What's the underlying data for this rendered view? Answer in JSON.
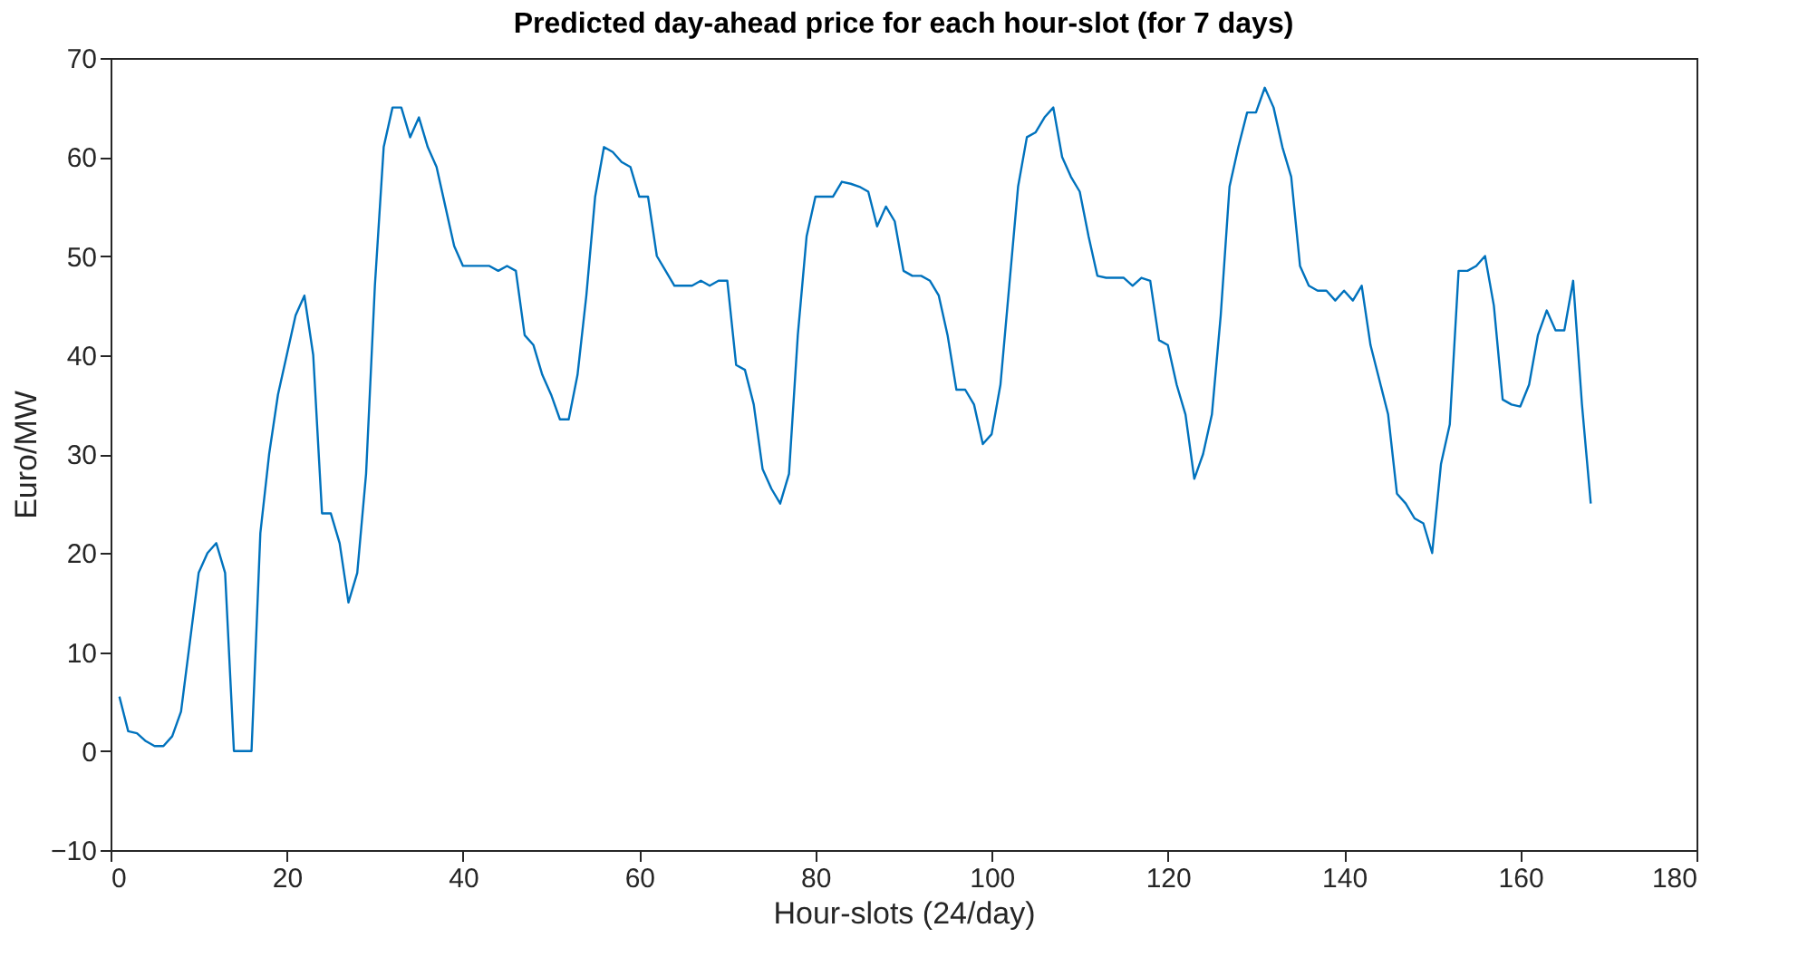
{
  "chart_data": {
    "type": "line",
    "title": "Predicted day-ahead price for each hour-slot (for 7 days)",
    "xlabel": "Hour-slots (24/day)",
    "ylabel": "Euro/MW",
    "x": [
      1,
      2,
      3,
      4,
      5,
      6,
      7,
      8,
      9,
      10,
      11,
      12,
      13,
      14,
      15,
      16,
      17,
      18,
      19,
      20,
      21,
      22,
      23,
      24,
      25,
      26,
      27,
      28,
      29,
      30,
      31,
      32,
      33,
      34,
      35,
      36,
      37,
      38,
      39,
      40,
      41,
      42,
      43,
      44,
      45,
      46,
      47,
      48,
      49,
      50,
      51,
      52,
      53,
      54,
      55,
      56,
      57,
      58,
      59,
      60,
      61,
      62,
      63,
      64,
      65,
      66,
      67,
      68,
      69,
      70,
      71,
      72,
      73,
      74,
      75,
      76,
      77,
      78,
      79,
      80,
      81,
      82,
      83,
      84,
      85,
      86,
      87,
      88,
      89,
      90,
      91,
      92,
      93,
      94,
      95,
      96,
      97,
      98,
      99,
      100,
      101,
      102,
      103,
      104,
      105,
      106,
      107,
      108,
      109,
      110,
      111,
      112,
      113,
      114,
      115,
      116,
      117,
      118,
      119,
      120,
      121,
      122,
      123,
      124,
      125,
      126,
      127,
      128,
      129,
      130,
      131,
      132,
      133,
      134,
      135,
      136,
      137,
      138,
      139,
      140,
      141,
      142,
      143,
      144,
      145,
      146,
      147,
      148,
      149,
      150,
      151,
      152,
      153,
      154,
      155,
      156,
      157,
      158,
      159,
      160,
      161,
      162,
      163,
      164,
      165,
      166,
      167,
      168
    ],
    "series": [
      {
        "color": "#0072bd",
        "values": [
          5.5,
          2,
          1.8,
          1,
          0.5,
          0.5,
          1.5,
          4,
          11,
          18,
          20,
          21,
          18,
          0,
          0,
          0,
          22,
          30,
          36,
          40,
          44,
          46,
          40,
          24,
          24,
          21,
          15,
          18,
          28,
          47,
          61,
          65,
          65,
          62,
          64,
          61,
          59,
          55,
          51,
          49,
          49,
          49,
          49,
          48.5,
          49,
          48.5,
          42,
          41,
          38,
          36,
          33.5,
          33.5,
          38,
          46,
          56,
          61,
          60.5,
          59.5,
          59,
          56,
          56,
          50,
          48.5,
          47,
          47,
          47,
          47.5,
          47,
          47.5,
          47.5,
          39,
          38.5,
          35,
          28.5,
          26.5,
          25,
          28,
          42,
          52,
          56,
          56,
          56,
          57.5,
          57.3,
          57,
          56.5,
          53,
          55,
          53.5,
          48.5,
          48,
          48,
          47.5,
          46,
          42,
          36.5,
          36.5,
          35,
          31,
          32,
          37,
          47,
          57,
          62,
          62.5,
          64,
          65,
          60,
          58,
          56.5,
          52,
          48,
          47.8,
          47.8,
          47.8,
          47,
          47.8,
          47.5,
          41.5,
          41,
          37,
          34,
          27.5,
          30,
          34,
          44,
          57,
          61,
          64.5,
          64.5,
          67,
          65,
          61,
          58,
          49,
          47,
          46.5,
          46.5,
          45.5,
          46.5,
          45.5,
          47,
          41,
          37.5,
          34,
          26,
          25,
          23.5,
          23,
          20,
          29,
          33,
          48.5,
          48.5,
          49,
          50,
          45,
          35.5,
          35,
          34.8,
          37,
          42,
          44.5,
          42.5,
          42.5,
          47.5,
          35,
          25
        ]
      }
    ],
    "xlim": [
      0,
      180
    ],
    "xticks": [
      0,
      20,
      40,
      60,
      80,
      100,
      120,
      140,
      160,
      180
    ],
    "ylim": [
      -10,
      70
    ],
    "yticks": [
      -10,
      0,
      10,
      20,
      30,
      40,
      50,
      60,
      70
    ]
  }
}
